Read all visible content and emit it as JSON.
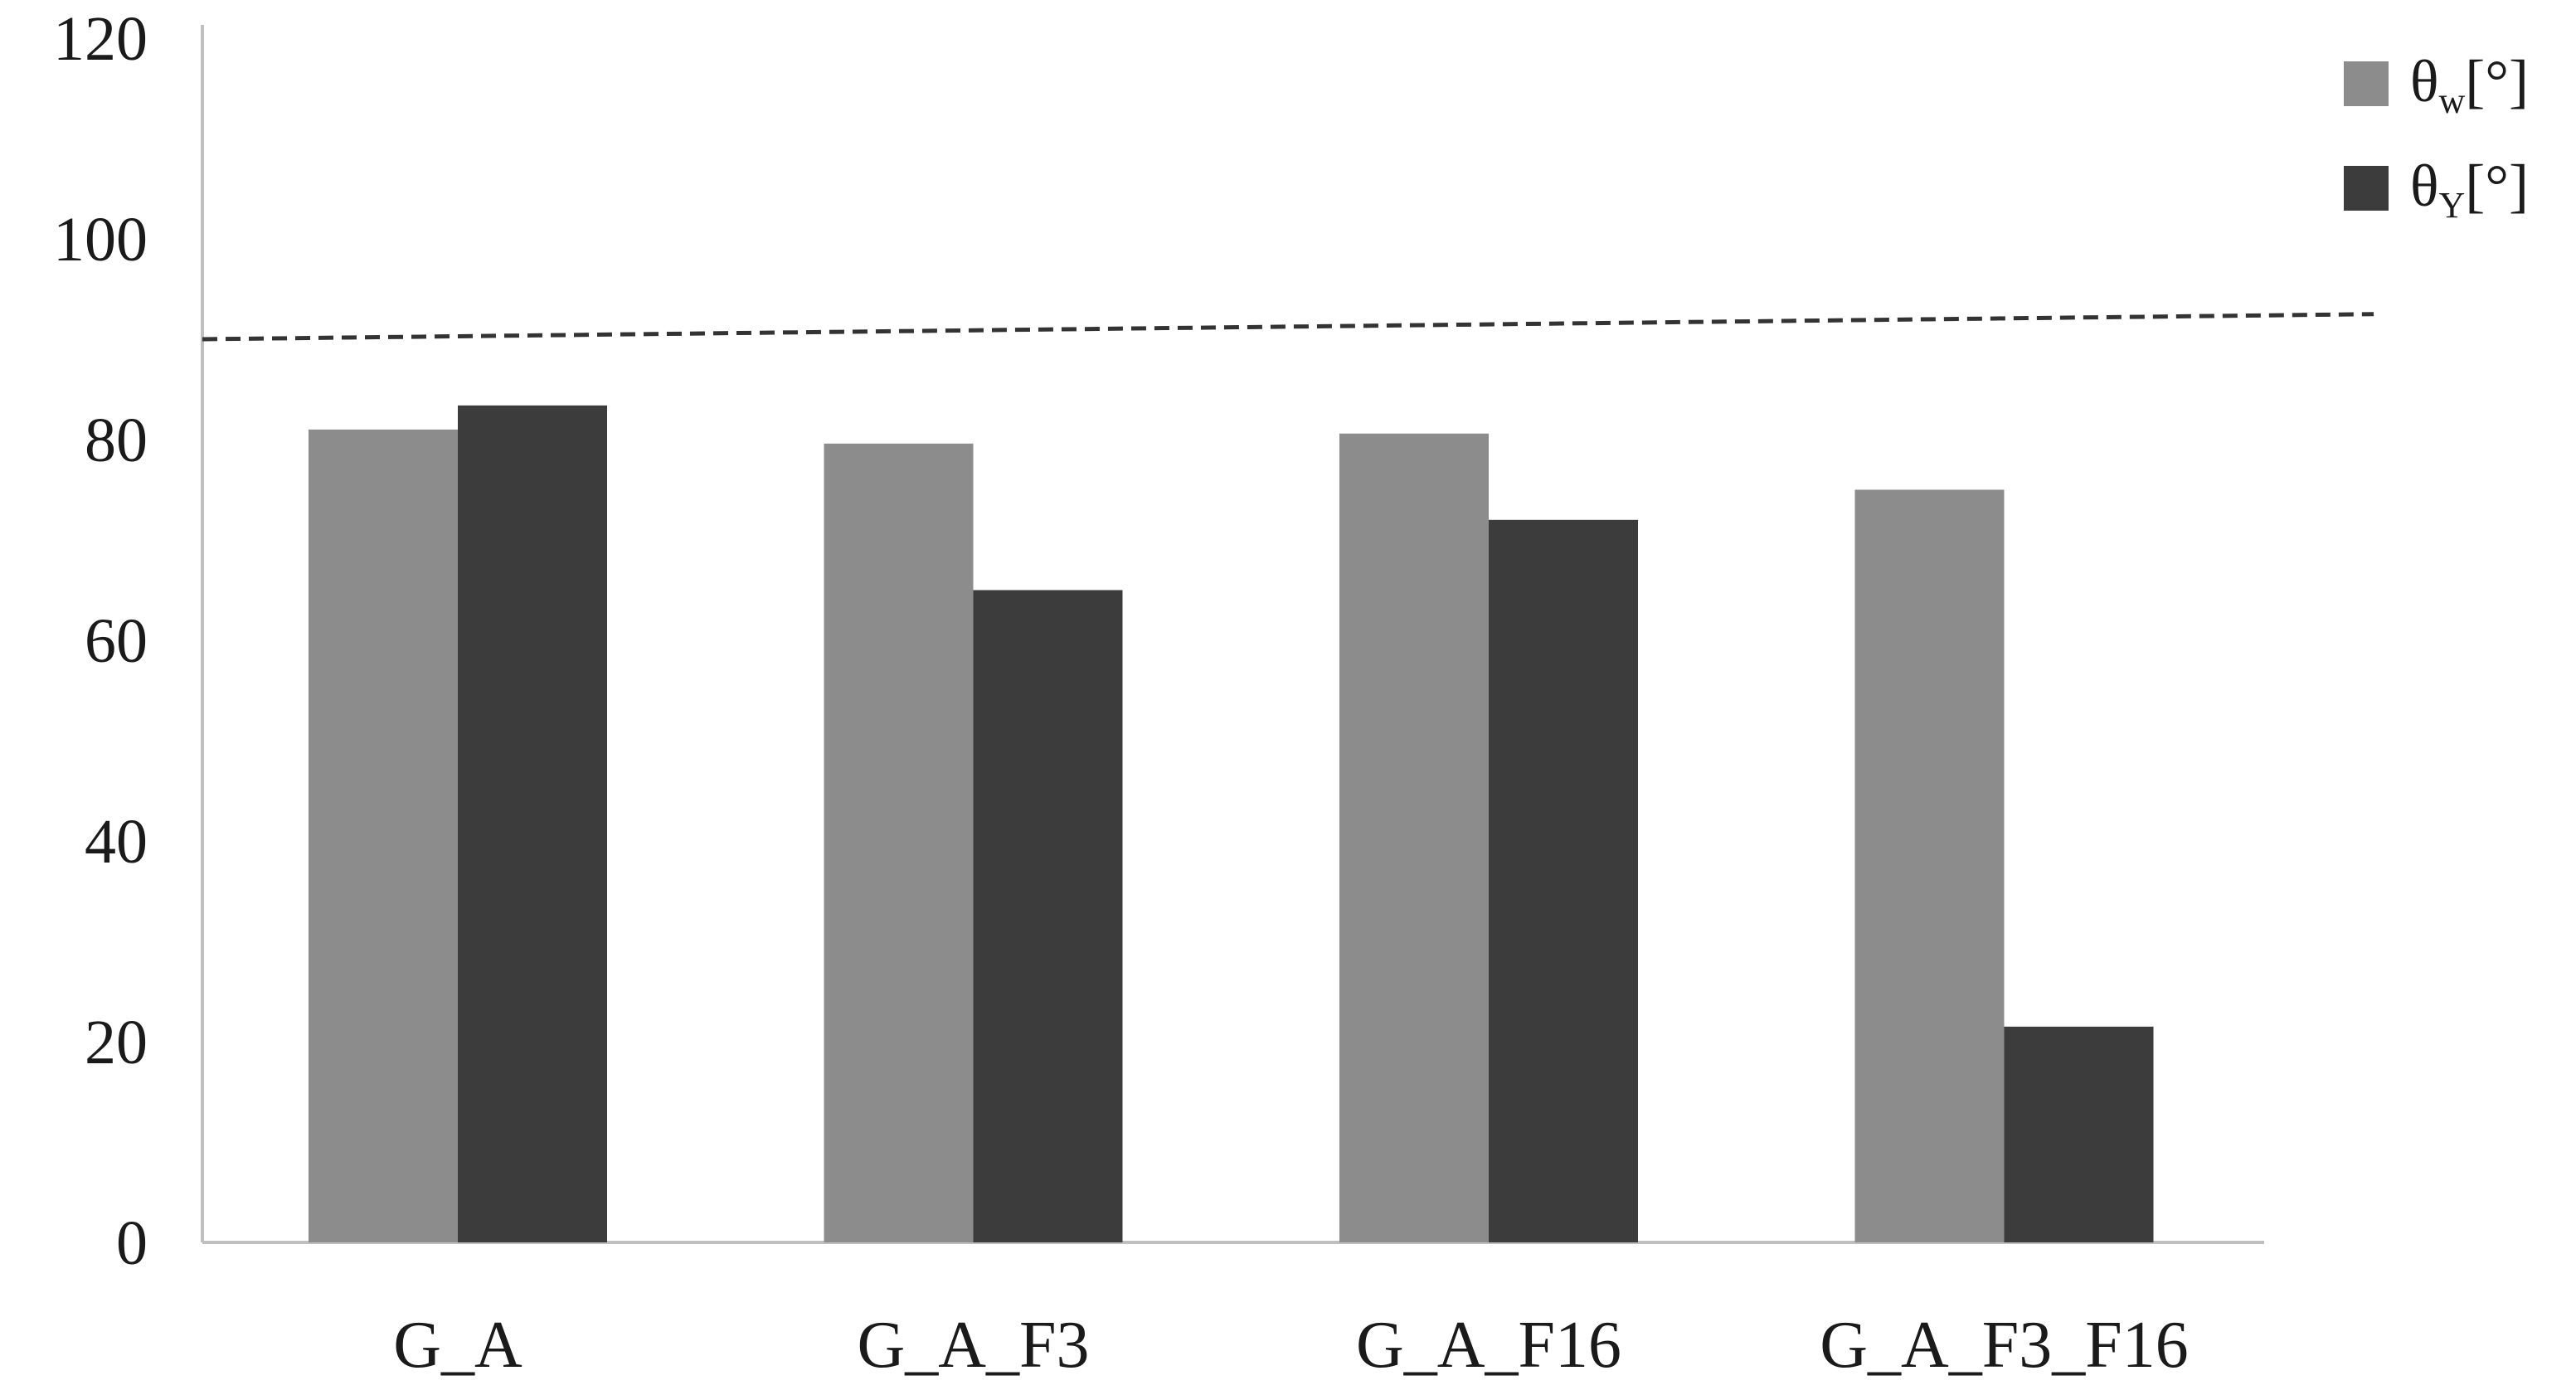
{
  "chart_data": {
    "type": "bar",
    "categories": [
      "G_A",
      "G_A_F3",
      "G_A_F16",
      "G_A_F3_F16"
    ],
    "series": [
      {
        "name_main": "θ",
        "name_sub": "w",
        "name_tail": "[°]",
        "color": "#8c8c8c",
        "values": [
          81,
          79.6,
          80.6,
          75
        ]
      },
      {
        "name_main": "θ",
        "name_sub": "Y",
        "name_tail": "[°]",
        "color": "#3c3c3c",
        "values": [
          83.4,
          65,
          72,
          21.5
        ]
      }
    ],
    "ylim": [
      0,
      120
    ],
    "yticks": [
      "0",
      "20",
      "40",
      "60",
      "80",
      "100",
      "120"
    ],
    "reference_line": {
      "style": "dashed",
      "y_start": 90,
      "y_end": 92.5
    },
    "legend_position": "top-right",
    "grid": false
  }
}
